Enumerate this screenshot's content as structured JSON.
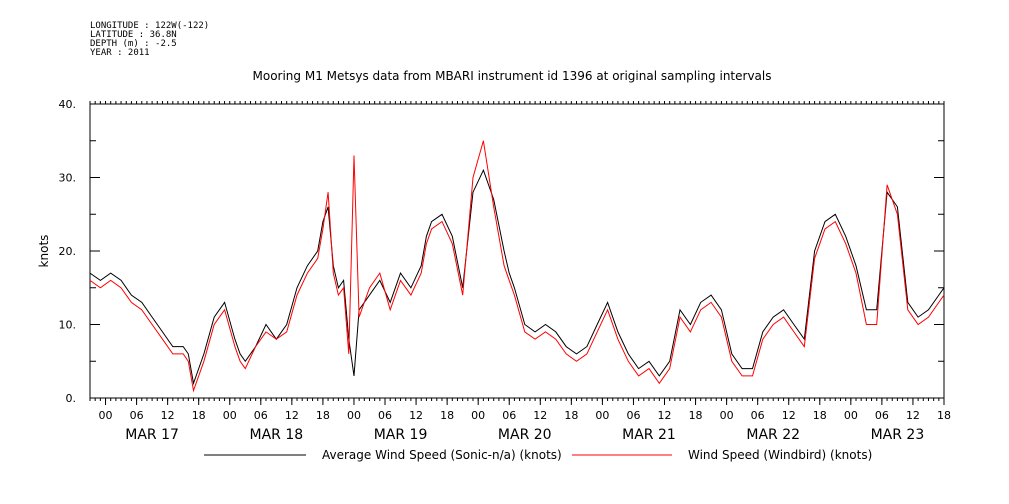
{
  "meta": {
    "longitude": "LONGITUDE : 122W(-122)",
    "latitude": "LATITUDE : 36.8N",
    "depth": "DEPTH (m) : -2.5",
    "year": "YEAR : 2011"
  },
  "chart_data": {
    "type": "line",
    "title": "Mooring M1 Metsys data from MBARI instrument id 1396 at original sampling intervals",
    "ylabel": "knots",
    "xlabel": "",
    "ylim": [
      0,
      40
    ],
    "yticks": [
      "0.",
      "10.",
      "20.",
      "30.",
      "40."
    ],
    "xlim_hours": [
      0,
      165
    ],
    "hour_ticks": [
      "00",
      "06",
      "12",
      "18",
      "00",
      "06",
      "12",
      "18",
      "00",
      "06",
      "12",
      "18",
      "00",
      "06",
      "12",
      "18",
      "00",
      "06",
      "12",
      "18",
      "00",
      "06",
      "12",
      "18",
      "00",
      "06",
      "12",
      "18"
    ],
    "day_labels": [
      "MAR 17",
      "MAR 18",
      "MAR 19",
      "MAR 20",
      "MAR 21",
      "MAR 22",
      "MAR 23"
    ],
    "grid": false,
    "legend_position": "bottom",
    "series": [
      {
        "name": "Average Wind Speed (Sonic-n/a) (knots)",
        "color": "#000000",
        "x": [
          0,
          2,
          4,
          6,
          8,
          10,
          12,
          14,
          16,
          18,
          19,
          20,
          22,
          24,
          26,
          28,
          29,
          30,
          32,
          34,
          36,
          38,
          40,
          42,
          44,
          45,
          46,
          47,
          48,
          49,
          50,
          51,
          52,
          54,
          56,
          58,
          60,
          62,
          64,
          65,
          66,
          68,
          70,
          72,
          74,
          76,
          78,
          80,
          81,
          82,
          84,
          86,
          88,
          90,
          92,
          94,
          96,
          98,
          100,
          102,
          104,
          106,
          108,
          110,
          112,
          114,
          116,
          118,
          120,
          122,
          124,
          126,
          128,
          130,
          132,
          134,
          136,
          138,
          140,
          142,
          144,
          146,
          148,
          150,
          152,
          154,
          156,
          158,
          160,
          162,
          164,
          165
        ],
        "y": [
          17,
          16,
          17,
          16,
          14,
          13,
          11,
          9,
          7,
          7,
          6,
          2,
          6,
          11,
          13,
          8,
          6,
          5,
          7,
          10,
          8,
          10,
          15,
          18,
          20,
          24,
          26,
          18,
          15,
          16,
          8,
          3,
          12,
          14,
          16,
          13,
          17,
          15,
          18,
          22,
          24,
          25,
          22,
          15,
          28,
          31,
          27,
          20,
          17,
          15,
          10,
          9,
          10,
          9,
          7,
          6,
          7,
          10,
          13,
          9,
          6,
          4,
          5,
          3,
          5,
          12,
          10,
          13,
          14,
          12,
          6,
          4,
          4,
          9,
          11,
          12,
          10,
          8,
          20,
          24,
          25,
          22,
          18,
          12,
          12,
          28,
          26,
          13,
          11,
          12,
          14,
          15
        ]
      },
      {
        "name": "Wind Speed (Windbird) (knots)",
        "color": "#ff0000",
        "x": [
          0,
          2,
          4,
          6,
          8,
          10,
          12,
          14,
          16,
          18,
          19,
          20,
          22,
          24,
          26,
          28,
          29,
          30,
          32,
          34,
          36,
          38,
          40,
          42,
          44,
          45,
          46,
          47,
          48,
          49,
          50,
          51,
          52,
          53,
          54,
          56,
          58,
          60,
          62,
          64,
          65,
          66,
          68,
          70,
          72,
          74,
          76,
          78,
          80,
          81,
          82,
          84,
          86,
          88,
          90,
          92,
          94,
          96,
          98,
          100,
          102,
          104,
          106,
          108,
          110,
          112,
          114,
          116,
          118,
          120,
          122,
          124,
          126,
          128,
          130,
          132,
          134,
          136,
          138,
          140,
          142,
          144,
          146,
          148,
          150,
          152,
          154,
          156,
          158,
          160,
          162,
          164,
          165
        ],
        "y": [
          16,
          15,
          16,
          15,
          13,
          12,
          10,
          8,
          6,
          6,
          5,
          1,
          5,
          10,
          12,
          7,
          5,
          4,
          7,
          9,
          8,
          9,
          14,
          17,
          19,
          23,
          28,
          17,
          14,
          15,
          6,
          33,
          11,
          13,
          15,
          17,
          12,
          16,
          14,
          17,
          21,
          23,
          24,
          21,
          14,
          30,
          35,
          26,
          18,
          16,
          14,
          9,
          8,
          9,
          8,
          6,
          5,
          6,
          9,
          12,
          8,
          5,
          3,
          4,
          2,
          4,
          11,
          9,
          12,
          13,
          11,
          5,
          3,
          3,
          8,
          10,
          11,
          9,
          7,
          19,
          23,
          24,
          21,
          17,
          10,
          10,
          29,
          25,
          12,
          10,
          11,
          13,
          14
        ]
      }
    ]
  }
}
